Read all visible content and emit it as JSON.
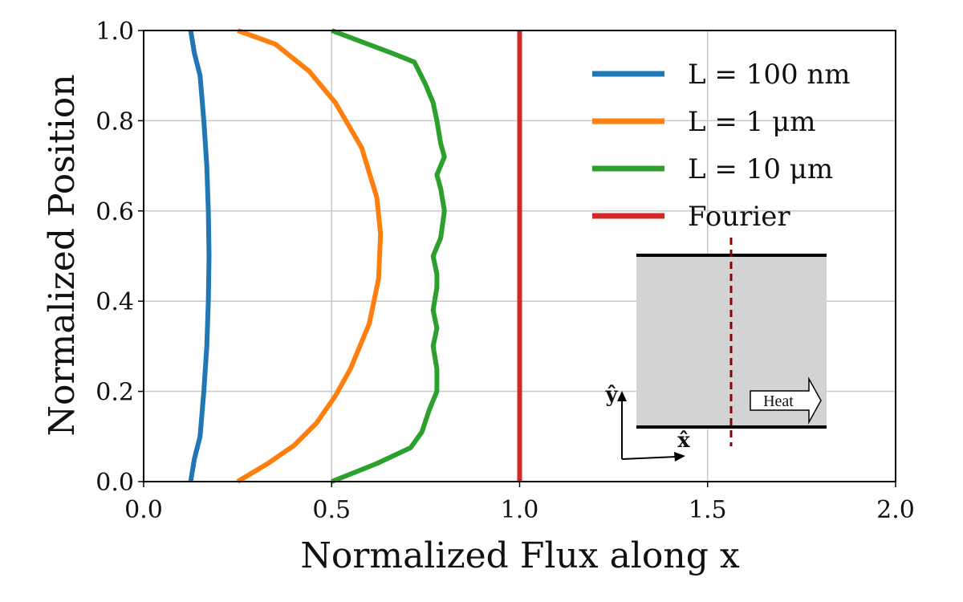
{
  "chart_data": {
    "type": "line",
    "title": "",
    "xlabel": "Normalized Flux along x",
    "ylabel": "Normalized Position",
    "xlim": [
      0.0,
      2.0
    ],
    "ylim": [
      0.0,
      1.0
    ],
    "xticks": [
      "0.0",
      "0.5",
      "1.0",
      "1.5",
      "2.0"
    ],
    "yticks": [
      "0.0",
      "0.2",
      "0.4",
      "0.6",
      "0.8",
      "1.0"
    ],
    "grid": true,
    "legend_position": "top-right",
    "series": [
      {
        "name": "L = 100 nm",
        "color": "#1f77b4",
        "points": [
          [
            0.125,
            0.0
          ],
          [
            0.135,
            0.05
          ],
          [
            0.15,
            0.1
          ],
          [
            0.16,
            0.2
          ],
          [
            0.168,
            0.3
          ],
          [
            0.172,
            0.4
          ],
          [
            0.174,
            0.5
          ],
          [
            0.172,
            0.6
          ],
          [
            0.168,
            0.7
          ],
          [
            0.16,
            0.8
          ],
          [
            0.15,
            0.9
          ],
          [
            0.135,
            0.95
          ],
          [
            0.125,
            1.0
          ]
        ]
      },
      {
        "name": "L = 1 μm",
        "color": "#ff7f0e",
        "points": [
          [
            0.25,
            0.0
          ],
          [
            0.33,
            0.04
          ],
          [
            0.4,
            0.08
          ],
          [
            0.46,
            0.13
          ],
          [
            0.51,
            0.19
          ],
          [
            0.55,
            0.25
          ],
          [
            0.6,
            0.35
          ],
          [
            0.625,
            0.45
          ],
          [
            0.63,
            0.55
          ],
          [
            0.62,
            0.63
          ],
          [
            0.58,
            0.74
          ],
          [
            0.51,
            0.84
          ],
          [
            0.44,
            0.91
          ],
          [
            0.35,
            0.97
          ],
          [
            0.25,
            1.0
          ]
        ]
      },
      {
        "name": "L = 10 μm",
        "color": "#2ca02c",
        "points": [
          [
            0.5,
            0.0
          ],
          [
            0.62,
            0.04
          ],
          [
            0.71,
            0.075
          ],
          [
            0.74,
            0.11
          ],
          [
            0.76,
            0.16
          ],
          [
            0.78,
            0.2
          ],
          [
            0.78,
            0.25
          ],
          [
            0.77,
            0.3
          ],
          [
            0.78,
            0.34
          ],
          [
            0.77,
            0.38
          ],
          [
            0.78,
            0.43
          ],
          [
            0.78,
            0.46
          ],
          [
            0.77,
            0.5
          ],
          [
            0.79,
            0.54
          ],
          [
            0.8,
            0.6
          ],
          [
            0.79,
            0.65
          ],
          [
            0.78,
            0.68
          ],
          [
            0.8,
            0.72
          ],
          [
            0.79,
            0.75
          ],
          [
            0.78,
            0.8
          ],
          [
            0.77,
            0.84
          ],
          [
            0.75,
            0.88
          ],
          [
            0.72,
            0.93
          ],
          [
            0.66,
            0.95
          ],
          [
            0.58,
            0.975
          ],
          [
            0.5,
            1.0
          ]
        ]
      },
      {
        "name": "Fourier",
        "color": "#d62728",
        "points": [
          [
            1.0,
            0.0
          ],
          [
            1.0,
            1.0
          ]
        ]
      }
    ],
    "inset": {
      "heat_label": "Heat",
      "x_unit_label": "x̂",
      "y_unit_label": "ŷ"
    }
  }
}
